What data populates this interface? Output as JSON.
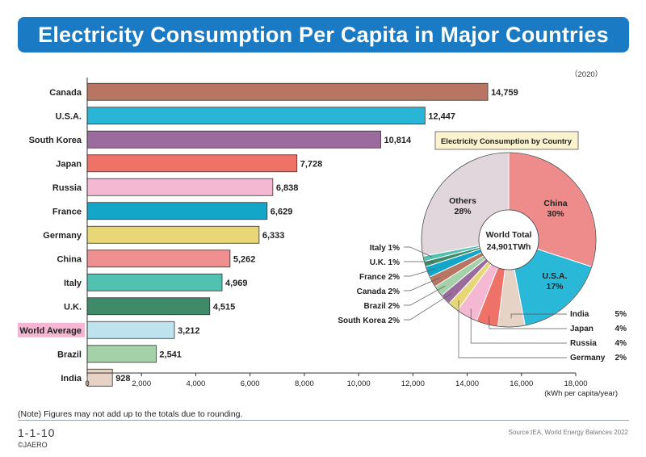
{
  "header": {
    "title": "Electricity Consumption Per Capita in Major Countries"
  },
  "year_label": "（2020）",
  "note": "(Note) Figures may not add up to the totals due to rounding.",
  "figure_code": "1-1-10",
  "source": "Source:IEA, World Energy Balances 2022",
  "copyright": "©JAERO",
  "chart_data": [
    {
      "type": "bar",
      "orientation": "horizontal",
      "categories": [
        "Canada",
        "U.S.A.",
        "South Korea",
        "Japan",
        "Russia",
        "France",
        "Germany",
        "China",
        "Italy",
        "U.K.",
        "World Average",
        "Brazil",
        "India"
      ],
      "values": [
        14759,
        12447,
        10814,
        7728,
        6838,
        6629,
        6333,
        5262,
        4969,
        4515,
        3212,
        2541,
        928
      ],
      "value_labels": [
        "14,759",
        "12,447",
        "10,814",
        "7,728",
        "6,838",
        "6,629",
        "6,333",
        "5,262",
        "4,969",
        "4,515",
        "3,212",
        "2,541",
        "928"
      ],
      "colors": [
        "#b87662",
        "#29b6d6",
        "#9b6b9e",
        "#ee7268",
        "#f4b8d2",
        "#13a6c8",
        "#e8d777",
        "#ef8f8f",
        "#52c2b0",
        "#3f8a68",
        "#bfe3ee",
        "#a4d1a8",
        "#e6d3c6"
      ],
      "highlighted_category": "World Average",
      "highlight_color": "#f4b6d2",
      "xlim": [
        0,
        18000
      ],
      "xticks": [
        0,
        2000,
        4000,
        6000,
        8000,
        10000,
        12000,
        14000,
        16000,
        18000
      ],
      "xtick_labels": [
        "0",
        "2,000",
        "4,000",
        "6,000",
        "8,000",
        "10,000",
        "12,000",
        "14,000",
        "16,000",
        "18,000"
      ],
      "xlabel": "(kWh per capita/year)",
      "grid": false
    },
    {
      "type": "pie",
      "style": "donut",
      "title": "Electricity Consumption by Country",
      "title_box_color": "#fbf3cf",
      "center_label": [
        "World Total",
        "24,901TWh"
      ],
      "slices": [
        {
          "name": "China",
          "value": 30,
          "label": "30%",
          "color": "#ee8b8b"
        },
        {
          "name": "U.S.A.",
          "value": 17,
          "label": "17%",
          "color": "#2ab8d8"
        },
        {
          "name": "India",
          "value": 5,
          "label": "5%",
          "color": "#e6d3c6"
        },
        {
          "name": "Japan",
          "value": 4,
          "label": "4%",
          "color": "#ee7268"
        },
        {
          "name": "Russia",
          "value": 4,
          "label": "4%",
          "color": "#f4b8d2"
        },
        {
          "name": "Germany",
          "value": 2,
          "label": "2%",
          "color": "#e8d777"
        },
        {
          "name": "South Korea",
          "value": 2,
          "label": "2%",
          "color": "#9b6b9e"
        },
        {
          "name": "Brazil",
          "value": 2,
          "label": "2%",
          "color": "#a4d1a8"
        },
        {
          "name": "Canada",
          "value": 2,
          "label": "2%",
          "color": "#b87662"
        },
        {
          "name": "France",
          "value": 2,
          "label": "2%",
          "color": "#13a6c8"
        },
        {
          "name": "U.K.",
          "value": 1,
          "label": "1%",
          "color": "#3f8a68"
        },
        {
          "name": "Italy",
          "value": 1,
          "label": "1%",
          "color": "#52c2b0"
        },
        {
          "name": "Others",
          "value": 28,
          "label": "28%",
          "color": "#e0d6dc"
        }
      ]
    }
  ]
}
